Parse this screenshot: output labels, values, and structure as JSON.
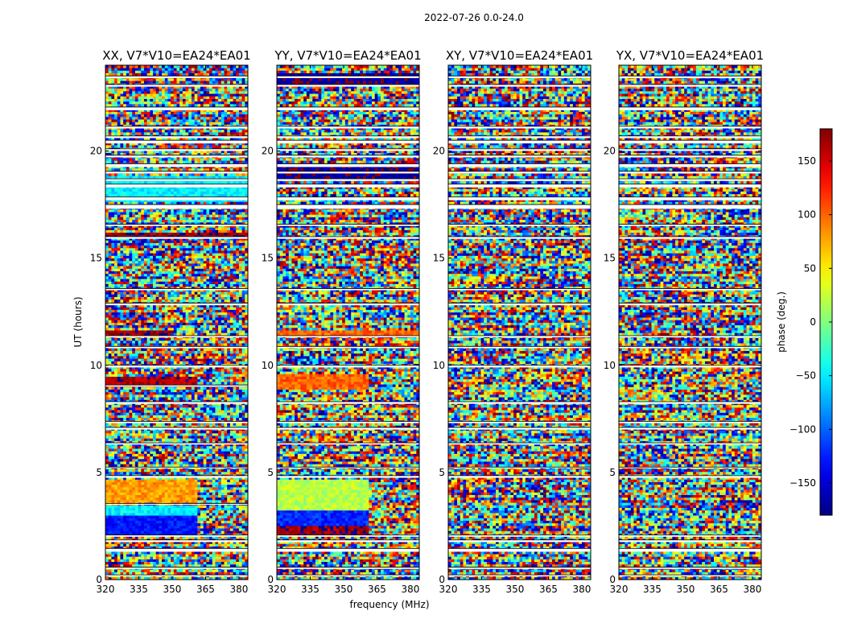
{
  "chart_data": {
    "type": "heatmap",
    "title": "2022-07-26 0.0-24.0",
    "xlabel": "frequency (MHz)",
    "ylabel": "UT (hours)",
    "xlim": [
      320,
      384
    ],
    "ylim": [
      0,
      24
    ],
    "xticks": [
      "320",
      "335",
      "350",
      "365",
      "380"
    ],
    "xtick_values": [
      320,
      335,
      350,
      365,
      380
    ],
    "yticks": [
      "0",
      "5",
      "10",
      "15",
      "20"
    ],
    "ytick_values": [
      0,
      5,
      10,
      15,
      20
    ],
    "colorbar": {
      "label": "phase (deg.)",
      "range": [
        -180,
        180
      ],
      "ticks": [
        "−150",
        "−100",
        "−50",
        "0",
        "50",
        "100",
        "150"
      ],
      "tick_values": [
        -150,
        -100,
        -50,
        0,
        50,
        100,
        150
      ],
      "colormap": "jet",
      "colors": [
        "#00007f",
        "#0000ff",
        "#007fff",
        "#00ffff",
        "#7fff7f",
        "#ffff00",
        "#ff7f00",
        "#ff0000",
        "#7f0000"
      ]
    },
    "panels": [
      {
        "name": "XX, V7*V10=EA24*EA01",
        "flagged_hours": [
          [
            0.15,
            0.22
          ],
          [
            0.5,
            0.58
          ],
          [
            1.3,
            1.45
          ],
          [
            1.75,
            1.85
          ],
          [
            2.0,
            2.08
          ],
          [
            3.5,
            3.55
          ],
          [
            4.75,
            4.85
          ],
          [
            5.2,
            5.25
          ],
          [
            6.3,
            6.38
          ],
          [
            7.0,
            7.1
          ],
          [
            7.3,
            7.38
          ],
          [
            8.2,
            8.3
          ],
          [
            9.0,
            9.08
          ],
          [
            9.9,
            10.0
          ],
          [
            10.8,
            10.88
          ],
          [
            11.3,
            11.38
          ],
          [
            12.8,
            12.9
          ],
          [
            13.5,
            13.58
          ],
          [
            15.9,
            16.0
          ],
          [
            16.5,
            16.58
          ],
          [
            17.3,
            17.5
          ],
          [
            17.7,
            17.85
          ],
          [
            18.3,
            18.45
          ],
          [
            18.6,
            18.7
          ],
          [
            18.95,
            19.05
          ],
          [
            19.25,
            19.4
          ],
          [
            19.7,
            19.8
          ],
          [
            20.0,
            20.1
          ],
          [
            20.35,
            20.5
          ],
          [
            20.6,
            20.7
          ],
          [
            21.05,
            21.15
          ],
          [
            21.9,
            22.05
          ],
          [
            23.0,
            23.1
          ],
          [
            23.4,
            23.5
          ]
        ],
        "coherent_blocks": [
          {
            "t": [
              2.0,
              3.0
            ],
            "f": [
              320,
              362
            ],
            "phase": -130
          },
          {
            "t": [
              3.0,
              3.45
            ],
            "f": [
              320,
              362
            ],
            "phase": -50
          },
          {
            "t": [
              3.6,
              4.7
            ],
            "f": [
              320,
              362
            ],
            "phase": 80
          },
          {
            "t": [
              11.45,
              11.7
            ],
            "f": [
              320,
              350
            ],
            "phase": 170
          },
          {
            "t": [
              16.0,
              16.25
            ],
            "f": [
              320,
              384
            ],
            "phase": 170
          },
          {
            "t": [
              9.0,
              9.5
            ],
            "f": [
              320,
              362
            ],
            "phase": 165
          },
          {
            "t": [
              17.7,
              18.9
            ],
            "f": [
              320,
              384
            ],
            "phase": -50
          }
        ]
      },
      {
        "name": "YY, V7*V10=EA24*EA01",
        "flagged_hours": [
          [
            0.15,
            0.22
          ],
          [
            0.5,
            0.58
          ],
          [
            1.3,
            1.45
          ],
          [
            1.75,
            1.85
          ],
          [
            2.0,
            2.08
          ],
          [
            4.75,
            4.85
          ],
          [
            5.2,
            5.25
          ],
          [
            6.3,
            6.38
          ],
          [
            7.0,
            7.1
          ],
          [
            7.3,
            7.38
          ],
          [
            8.2,
            8.3
          ],
          [
            9.9,
            10.0
          ],
          [
            10.8,
            10.88
          ],
          [
            11.3,
            11.38
          ],
          [
            12.8,
            12.9
          ],
          [
            13.5,
            13.58
          ],
          [
            15.9,
            16.0
          ],
          [
            16.5,
            16.58
          ],
          [
            17.3,
            17.5
          ],
          [
            17.7,
            17.85
          ],
          [
            18.3,
            18.45
          ],
          [
            18.6,
            18.7
          ],
          [
            18.95,
            19.05
          ],
          [
            19.25,
            19.4
          ],
          [
            19.7,
            19.8
          ],
          [
            20.0,
            20.1
          ],
          [
            20.35,
            20.5
          ],
          [
            20.6,
            20.7
          ],
          [
            21.05,
            21.15
          ],
          [
            21.9,
            22.05
          ],
          [
            23.0,
            23.1
          ],
          [
            23.4,
            23.5
          ]
        ],
        "coherent_blocks": [
          {
            "t": [
              2.0,
              2.5
            ],
            "f": [
              320,
              362
            ],
            "phase": 170
          },
          {
            "t": [
              2.5,
              3.3
            ],
            "f": [
              320,
              362
            ],
            "phase": -120
          },
          {
            "t": [
              3.3,
              4.7
            ],
            "f": [
              320,
              362
            ],
            "phase": 20
          },
          {
            "t": [
              11.45,
              11.7
            ],
            "f": [
              320,
              384
            ],
            "phase": 100
          },
          {
            "t": [
              8.9,
              9.6
            ],
            "f": [
              320,
              362
            ],
            "phase": 100
          },
          {
            "t": [
              18.7,
              19.4
            ],
            "f": [
              320,
              384
            ],
            "phase": -170
          },
          {
            "t": [
              23.0,
              23.6
            ],
            "f": [
              320,
              384
            ],
            "phase": -170
          }
        ]
      },
      {
        "name": "XY, V7*V10=EA24*EA01",
        "flagged_hours": [
          [
            0.15,
            0.22
          ],
          [
            0.5,
            0.58
          ],
          [
            1.3,
            1.45
          ],
          [
            1.75,
            1.85
          ],
          [
            2.0,
            2.08
          ],
          [
            4.75,
            4.85
          ],
          [
            5.2,
            5.25
          ],
          [
            6.3,
            6.38
          ],
          [
            7.0,
            7.1
          ],
          [
            7.3,
            7.38
          ],
          [
            8.2,
            8.3
          ],
          [
            9.9,
            10.0
          ],
          [
            10.8,
            10.88
          ],
          [
            11.3,
            11.38
          ],
          [
            12.8,
            12.9
          ],
          [
            13.5,
            13.58
          ],
          [
            15.9,
            16.0
          ],
          [
            16.5,
            16.58
          ],
          [
            17.3,
            17.5
          ],
          [
            17.7,
            17.85
          ],
          [
            18.3,
            18.45
          ],
          [
            18.6,
            18.7
          ],
          [
            18.95,
            19.05
          ],
          [
            19.25,
            19.4
          ],
          [
            19.7,
            19.8
          ],
          [
            20.0,
            20.1
          ],
          [
            20.35,
            20.5
          ],
          [
            20.6,
            20.7
          ],
          [
            21.05,
            21.15
          ],
          [
            21.9,
            22.05
          ],
          [
            23.0,
            23.1
          ],
          [
            23.4,
            23.5
          ]
        ],
        "coherent_blocks": []
      },
      {
        "name": "YX, V7*V10=EA24*EA01",
        "flagged_hours": [
          [
            0.15,
            0.22
          ],
          [
            0.5,
            0.58
          ],
          [
            1.3,
            1.45
          ],
          [
            1.75,
            1.85
          ],
          [
            2.0,
            2.08
          ],
          [
            4.75,
            4.85
          ],
          [
            5.2,
            5.25
          ],
          [
            6.3,
            6.38
          ],
          [
            7.0,
            7.1
          ],
          [
            7.3,
            7.38
          ],
          [
            8.2,
            8.3
          ],
          [
            9.9,
            10.0
          ],
          [
            10.8,
            10.88
          ],
          [
            11.3,
            11.38
          ],
          [
            12.8,
            12.9
          ],
          [
            13.5,
            13.58
          ],
          [
            15.9,
            16.0
          ],
          [
            16.5,
            16.58
          ],
          [
            17.3,
            17.5
          ],
          [
            17.7,
            17.85
          ],
          [
            18.3,
            18.45
          ],
          [
            18.6,
            18.7
          ],
          [
            18.95,
            19.05
          ],
          [
            19.25,
            19.4
          ],
          [
            19.7,
            19.8
          ],
          [
            20.0,
            20.1
          ],
          [
            20.35,
            20.5
          ],
          [
            20.6,
            20.7
          ],
          [
            21.05,
            21.15
          ],
          [
            21.9,
            22.05
          ],
          [
            23.0,
            23.1
          ],
          [
            23.4,
            23.5
          ]
        ],
        "coherent_blocks": []
      }
    ]
  }
}
